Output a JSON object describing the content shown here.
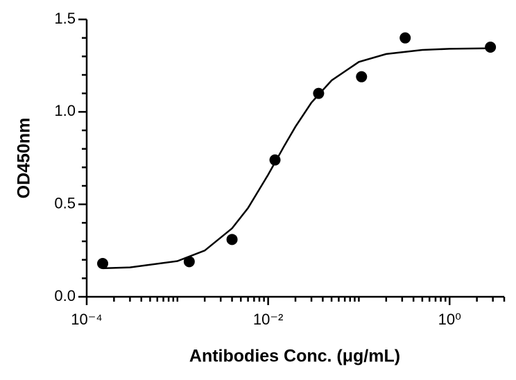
{
  "chart_data": {
    "type": "scatter",
    "x_label": "Antibodies Conc. (μg/mL)",
    "y_label": "OD450nm",
    "x": [
      0.00015,
      0.00135,
      0.004,
      0.0119,
      0.036,
      0.107,
      0.324,
      2.82
    ],
    "values": [
      0.18,
      0.19,
      0.31,
      0.74,
      1.1,
      1.19,
      1.4,
      1.35
    ],
    "color": "#000000",
    "curve": {
      "x": [
        0.00015,
        0.0003,
        0.001,
        0.002,
        0.004,
        0.006,
        0.01,
        0.015,
        0.02,
        0.03,
        0.05,
        0.1,
        0.2,
        0.5,
        1,
        2.8
      ],
      "values": [
        0.154,
        0.159,
        0.193,
        0.25,
        0.37,
        0.48,
        0.66,
        0.815,
        0.92,
        1.05,
        1.17,
        1.27,
        1.313,
        1.335,
        1.341,
        1.344
      ]
    },
    "x_log": true,
    "xlim": [
      0.0001,
      4
    ],
    "xticks": [
      {
        "value": 0.0001,
        "label": "10⁻⁴"
      },
      {
        "value": 0.01,
        "label": "10⁻²"
      },
      {
        "value": 1,
        "label": "10⁰"
      }
    ],
    "xminorticks": [
      0.0002,
      0.0003,
      0.0004,
      0.0005,
      0.0006,
      0.0007,
      0.0008,
      0.0009,
      0.001,
      0.002,
      0.003,
      0.004,
      0.005,
      0.006,
      0.007,
      0.008,
      0.009,
      0.02,
      0.03,
      0.04,
      0.05,
      0.06,
      0.07,
      0.08,
      0.09,
      0.1,
      0.2,
      0.3,
      0.4,
      0.5,
      0.6,
      0.7,
      0.8,
      0.9,
      2,
      3,
      4
    ],
    "ylim": [
      0,
      1.5
    ],
    "yticks": [
      {
        "value": 0,
        "label": "0.0"
      },
      {
        "value": 0.5,
        "label": "0.5"
      },
      {
        "value": 1,
        "label": "1.0"
      },
      {
        "value": 1.5,
        "label": "1.5"
      }
    ],
    "yminorticks": [
      0.1,
      0.2,
      0.3,
      0.4,
      0.6,
      0.7,
      0.8,
      0.9,
      1.1,
      1.2,
      1.3,
      1.4
    ]
  }
}
